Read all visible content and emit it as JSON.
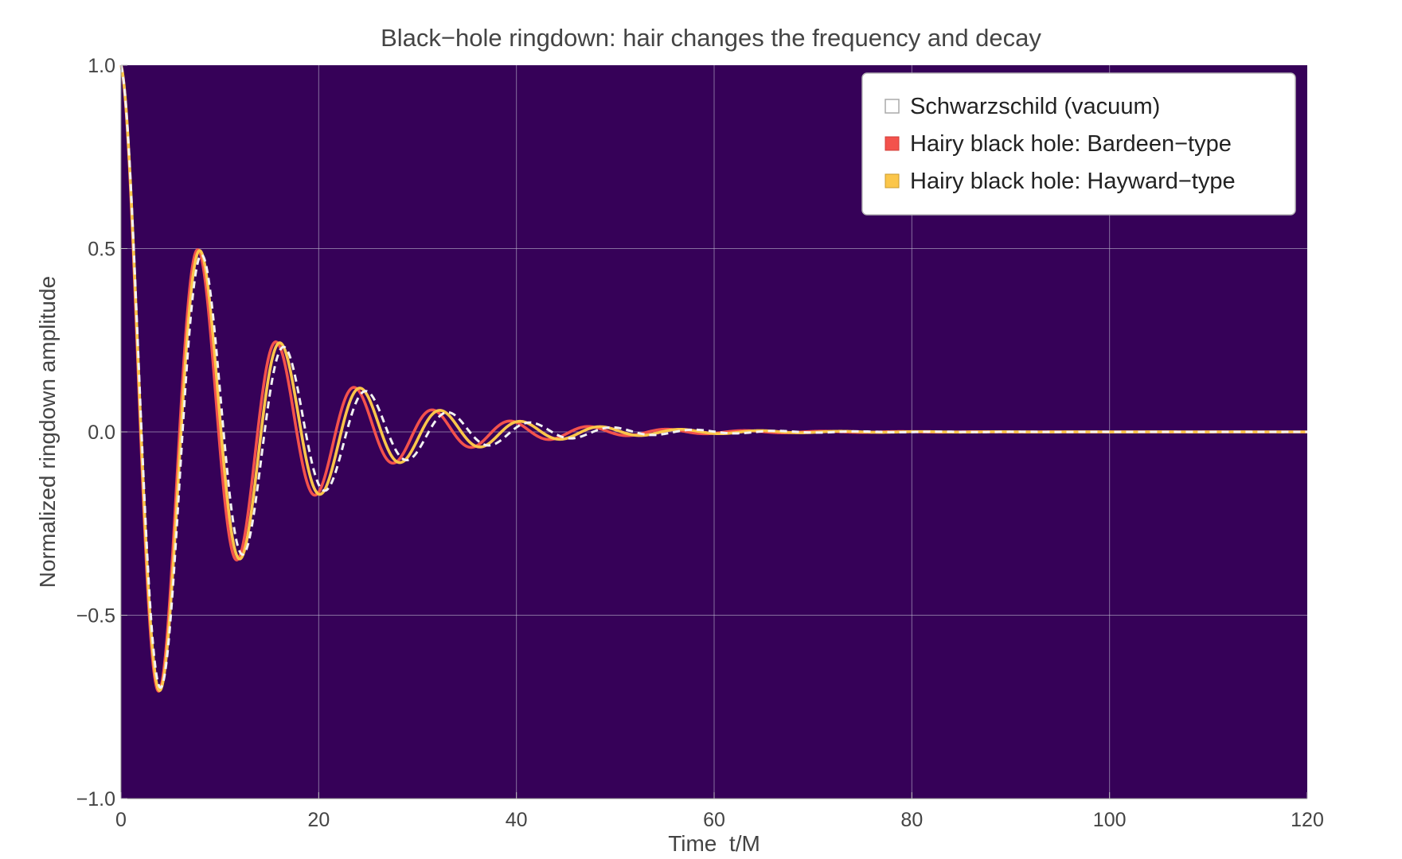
{
  "chart_data": {
    "type": "line",
    "title": "Black−hole ringdown: hair changes the frequency and decay",
    "xlabel": "Time  t/M",
    "ylabel": "Normalized ringdown amplitude",
    "xlim": [
      0,
      120
    ],
    "ylim": [
      -1.0,
      1.0
    ],
    "xticks": [
      0,
      20,
      40,
      60,
      80,
      100,
      120
    ],
    "xtick_labels": [
      "0",
      "20",
      "40",
      "60",
      "80",
      "100",
      "120"
    ],
    "yticks": [
      -1.0,
      -0.5,
      0.0,
      0.5,
      1.0
    ],
    "ytick_labels": [
      "−1.0",
      "−0.5",
      "0.0",
      "0.5",
      "1.0"
    ],
    "grid": true,
    "legend_position": "top-right",
    "plot_background": "#360158",
    "series": [
      {
        "name": "Schwarzschild (vacuum)",
        "color": "#f2f2f2",
        "style": "dashed",
        "model": {
          "amplitude": 1.0,
          "period": 8.3,
          "tau": 11.3
        },
        "peaks": [
          {
            "t": 0,
            "y": 1.0
          },
          {
            "t": 4.15,
            "y": -0.69
          },
          {
            "t": 8.3,
            "y": 0.48
          },
          {
            "t": 12.45,
            "y": -0.33
          },
          {
            "t": 16.6,
            "y": 0.23
          },
          {
            "t": 20.75,
            "y": -0.16
          },
          {
            "t": 24.9,
            "y": 0.11
          },
          {
            "t": 29.05,
            "y": -0.076
          },
          {
            "t": 33.2,
            "y": 0.053
          },
          {
            "t": 37.35,
            "y": -0.037
          },
          {
            "t": 41.5,
            "y": 0.025
          }
        ]
      },
      {
        "name": "Hairy black hole: Bardeen−type",
        "color": "#f3524c",
        "style": "solid",
        "model": {
          "amplitude": 1.0,
          "period": 7.9,
          "tau": 11.2
        },
        "peaks": [
          {
            "t": 0,
            "y": 1.0
          },
          {
            "t": 3.95,
            "y": -0.7
          },
          {
            "t": 7.9,
            "y": 0.49
          },
          {
            "t": 11.85,
            "y": -0.34
          },
          {
            "t": 15.8,
            "y": 0.24
          },
          {
            "t": 19.75,
            "y": -0.17
          },
          {
            "t": 23.7,
            "y": 0.12
          },
          {
            "t": 27.65,
            "y": -0.08
          },
          {
            "t": 31.6,
            "y": 0.06
          },
          {
            "t": 35.55,
            "y": -0.04
          },
          {
            "t": 39.5,
            "y": 0.03
          }
        ]
      },
      {
        "name": "Hairy black hole: Hayward−type",
        "color": "#fbc64a",
        "style": "solid",
        "model": {
          "amplitude": 1.0,
          "period": 8.1,
          "tau": 11.4
        },
        "peaks": [
          {
            "t": 0,
            "y": 1.0
          },
          {
            "t": 4.05,
            "y": -0.7
          },
          {
            "t": 8.1,
            "y": 0.49
          },
          {
            "t": 12.15,
            "y": -0.34
          },
          {
            "t": 16.2,
            "y": 0.24
          },
          {
            "t": 20.25,
            "y": -0.17
          },
          {
            "t": 24.3,
            "y": 0.12
          },
          {
            "t": 28.35,
            "y": -0.08
          },
          {
            "t": 32.4,
            "y": 0.06
          },
          {
            "t": 36.45,
            "y": -0.04
          },
          {
            "t": 40.5,
            "y": 0.03
          }
        ]
      }
    ]
  }
}
